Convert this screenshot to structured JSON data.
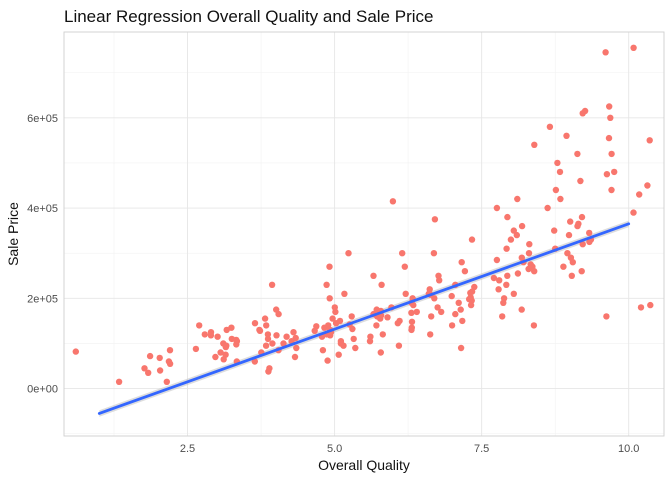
{
  "chart_data": {
    "type": "scatter",
    "title": "Linear Regression Overall Quality and Sale Price",
    "xlabel": "Overall Quality",
    "ylabel": "Sale Price",
    "xlim": [
      0.4,
      10.6
    ],
    "ylim": [
      -105000,
      790000
    ],
    "x_ticks": [
      2.5,
      5.0,
      7.5,
      10.0
    ],
    "x_tick_labels": [
      "2.5",
      "5.0",
      "7.5",
      "10.0"
    ],
    "y_ticks": [
      0,
      200000,
      400000,
      600000
    ],
    "y_tick_labels": [
      "0e+00",
      "2e+05",
      "4e+05",
      "6e+05"
    ],
    "grid": true,
    "legend": "none",
    "point_color": "#F8766D",
    "line_color": "#3366FF",
    "band_color": "#BBBBBB",
    "regression_line": {
      "x": [
        1,
        10
      ],
      "y": [
        -55000,
        365000
      ]
    },
    "jitter_width": 0.4,
    "groups": [
      {
        "quality": 1,
        "values": [
          82000,
          15000
        ]
      },
      {
        "quality": 2,
        "values": [
          35000,
          45000,
          60000,
          68000,
          72000,
          85000,
          55000,
          40000,
          15000
        ]
      },
      {
        "quality": 3,
        "values": [
          100000,
          110000,
          120000,
          125000,
          130000,
          95000,
          88000,
          75000,
          70000,
          60000,
          135000,
          140000,
          115000,
          105000,
          92000,
          65000,
          80000,
          98000,
          108000,
          118000
        ]
      },
      {
        "quality": 4,
        "values": [
          110000,
          105000,
          120000,
          130000,
          140000,
          100000,
          95000,
          90000,
          85000,
          115000,
          125000,
          145000,
          155000,
          165000,
          175000,
          230000,
          80000,
          70000,
          60000,
          45000,
          38000,
          100000,
          112000,
          118000,
          128000
        ]
      },
      {
        "quality": 5,
        "values": [
          130000,
          135000,
          140000,
          125000,
          120000,
          145000,
          150000,
          115000,
          110000,
          155000,
          160000,
          105000,
          100000,
          170000,
          180000,
          95000,
          90000,
          200000,
          210000,
          85000,
          75000,
          62000,
          230000,
          270000,
          300000,
          132000,
          138000,
          142000,
          128000,
          118000
        ]
      },
      {
        "quality": 6,
        "values": [
          160000,
          165000,
          170000,
          155000,
          150000,
          175000,
          180000,
          145000,
          140000,
          185000,
          190000,
          135000,
          130000,
          200000,
          210000,
          120000,
          115000,
          230000,
          250000,
          105000,
          95000,
          80000,
          270000,
          415000,
          300000,
          162000,
          168000,
          172000,
          158000,
          148000
        ]
      },
      {
        "quality": 7,
        "values": [
          200000,
          205000,
          210000,
          195000,
          190000,
          215000,
          220000,
          185000,
          180000,
          225000,
          230000,
          175000,
          170000,
          240000,
          250000,
          165000,
          160000,
          260000,
          280000,
          150000,
          140000,
          120000,
          300000,
          330000,
          375000,
          90000,
          202000,
          208000,
          212000,
          198000
        ]
      },
      {
        "quality": 8,
        "values": [
          260000,
          270000,
          280000,
          250000,
          240000,
          290000,
          300000,
          230000,
          220000,
          310000,
          320000,
          210000,
          200000,
          340000,
          360000,
          190000,
          175000,
          380000,
          400000,
          160000,
          140000,
          540000,
          420000,
          265000,
          275000,
          285000,
          255000,
          245000,
          330000,
          350000
        ]
      },
      {
        "quality": 9,
        "values": [
          320000,
          330000,
          340000,
          310000,
          300000,
          350000,
          360000,
          290000,
          280000,
          370000,
          380000,
          270000,
          260000,
          400000,
          420000,
          250000,
          440000,
          460000,
          480000,
          500000,
          520000,
          560000,
          580000,
          610000,
          615000,
          325000,
          345000,
          365000
        ]
      },
      {
        "quality": 10,
        "values": [
          185000,
          160000,
          180000,
          390000,
          430000,
          450000,
          475000,
          520000,
          555000,
          600000,
          625000,
          745000,
          755000,
          550000,
          480000,
          440000
        ]
      }
    ]
  }
}
